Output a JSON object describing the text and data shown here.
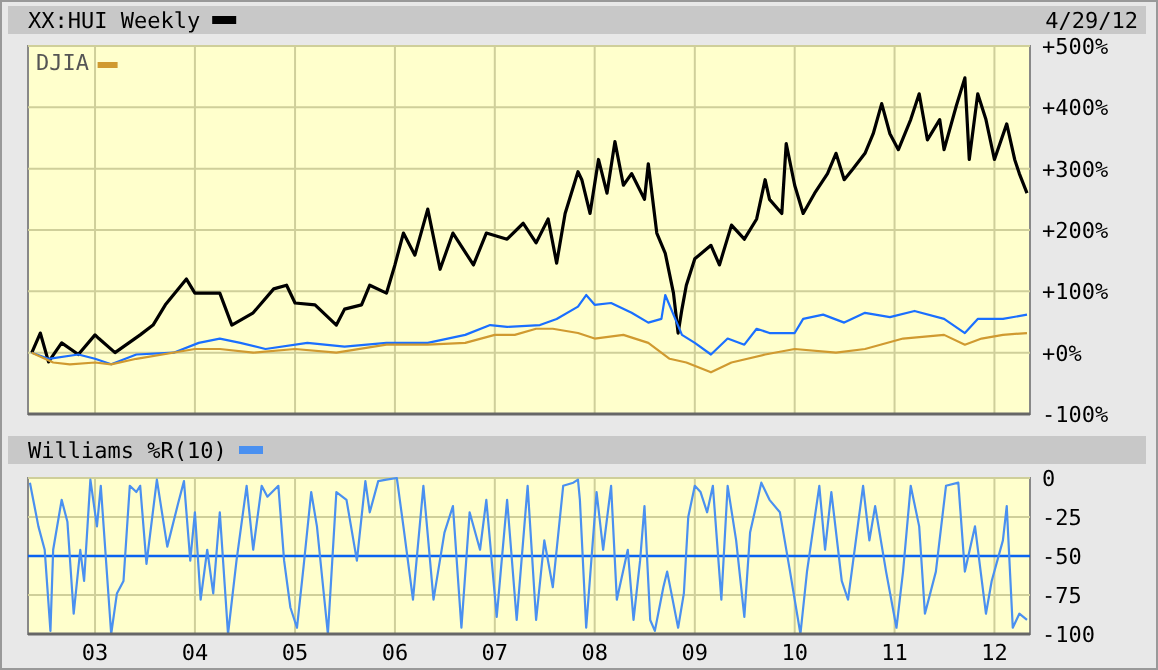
{
  "chart_data": [
    {
      "type": "line",
      "title": "XX:HUI Weekly",
      "annotations": [
        "4/29/12"
      ],
      "legend": "top left",
      "grid": true,
      "tick_labels": "y",
      "xlim": [
        "2002-05-01",
        "2012-05-10"
      ],
      "xticks": [
        "2003-01-01",
        "2004-01-01",
        "2005-01-01",
        "2006-01-01",
        "2007-01-01",
        "2008-01-01",
        "2009-01-01",
        "2010-01-01",
        "2011-01-01",
        "2012-01-01"
      ],
      "ylim": [
        -100,
        500
      ],
      "yticks": [
        {
          "value": -100,
          "label": "-100%"
        },
        {
          "value": 0,
          "label": "+0%"
        },
        {
          "value": 100,
          "label": "+100%"
        },
        {
          "value": 200,
          "label": "+200%"
        },
        {
          "value": 300,
          "label": "+300%"
        },
        {
          "value": 400,
          "label": "+400%"
        },
        {
          "value": 500,
          "label": "+500%"
        }
      ],
      "series": [
        {
          "color": "#000000",
          "x": [
            "2002-05-15",
            "2002-06-15",
            "2002-07-15",
            "2002-09-01",
            "2002-11-01",
            "2003-01-01",
            "2003-01-15",
            "2003-03-15",
            "2003-06-15",
            "2003-08-01",
            "2003-09-15",
            "2003-12-01",
            "2004-01-01",
            "2004-04-01",
            "2004-05-15",
            "2004-08-01",
            "2004-10-15",
            "2004-12-01",
            "2005-01-01",
            "2005-03-15",
            "2005-06-01",
            "2005-07-01",
            "2005-09-01",
            "2005-10-01",
            "2005-12-01",
            "2006-01-01",
            "2006-02-01",
            "2006-03-15",
            "2006-05-01",
            "2006-06-15",
            "2006-08-01",
            "2006-10-15",
            "2006-12-01",
            "2007-02-15",
            "2007-04-15",
            "2007-06-01",
            "2007-07-15",
            "2007-08-15",
            "2007-09-15",
            "2007-11-01",
            "2007-11-15",
            "2007-12-15",
            "2008-01-15",
            "2008-02-15",
            "2008-03-15",
            "2008-04-15",
            "2008-05-15",
            "2008-07-01",
            "2008-07-15",
            "2008-08-15",
            "2008-09-15",
            "2008-10-15",
            "2008-11-01",
            "2008-11-15",
            "2008-12-01",
            "2009-01-01",
            "2009-03-01",
            "2009-04-01",
            "2009-05-15",
            "2009-07-01",
            "2009-08-15",
            "2009-09-15",
            "2009-10-01",
            "2009-11-15",
            "2009-12-01",
            "2010-01-01",
            "2010-02-01",
            "2010-03-15",
            "2010-05-01",
            "2010-06-01",
            "2010-07-01",
            "2010-08-01",
            "2010-09-15",
            "2010-10-15",
            "2010-11-15",
            "2010-12-15",
            "2011-01-15",
            "2011-03-01",
            "2011-04-01",
            "2011-05-01",
            "2011-06-15",
            "2011-07-01",
            "2011-08-15",
            "2011-09-15",
            "2011-10-01",
            "2011-11-01",
            "2011-12-01",
            "2012-01-01",
            "2012-02-15",
            "2012-03-15",
            "2012-04-01",
            "2012-04-29"
          ],
          "values": [
            0,
            32,
            -15,
            16,
            -3,
            29,
            23,
            0,
            29,
            45,
            78,
            120,
            97,
            97,
            45,
            65,
            104,
            110,
            81,
            78,
            45,
            71,
            78,
            110,
            97,
            143,
            195,
            159,
            234,
            136,
            195,
            143,
            195,
            185,
            211,
            179,
            218,
            146,
            227,
            295,
            282,
            227,
            315,
            260,
            344,
            273,
            292,
            250,
            308,
            195,
            162,
            97,
            32,
            71,
            110,
            153,
            175,
            143,
            208,
            185,
            218,
            282,
            250,
            227,
            341,
            273,
            227,
            260,
            292,
            325,
            282,
            299,
            325,
            357,
            406,
            357,
            331,
            380,
            422,
            347,
            380,
            331,
            403,
            448,
            315,
            422,
            380,
            315,
            373,
            315,
            292,
            260
          ]
        },
        {
          "color": "#1a6fff",
          "x": [
            "2002-05-15",
            "2002-07-15",
            "2002-11-01",
            "2003-01-01",
            "2003-03-01",
            "2003-06-01",
            "2003-10-15",
            "2004-01-15",
            "2004-04-01",
            "2004-06-15",
            "2004-09-15",
            "2005-02-15",
            "2005-07-01",
            "2005-12-01",
            "2006-05-01",
            "2006-09-15",
            "2006-12-15",
            "2007-02-15",
            "2007-06-15",
            "2007-08-15",
            "2007-11-01",
            "2007-12-01",
            "2008-01-01",
            "2008-03-01",
            "2008-05-15",
            "2008-07-15",
            "2008-09-01",
            "2008-09-15",
            "2008-10-15",
            "2008-11-15",
            "2009-01-01",
            "2009-03-01",
            "2009-05-01",
            "2009-07-01",
            "2009-08-15",
            "2009-10-01",
            "2010-01-01",
            "2010-02-01",
            "2010-04-15",
            "2010-07-01",
            "2010-09-15",
            "2010-12-15",
            "2011-03-15",
            "2011-07-01",
            "2011-09-15",
            "2011-11-01",
            "2012-02-01",
            "2012-04-29"
          ],
          "values": [
            0,
            -10,
            -3,
            -10,
            -19,
            -3,
            0,
            16,
            23,
            16,
            6,
            16,
            10,
            16,
            16,
            29,
            45,
            42,
            45,
            55,
            75,
            94,
            78,
            81,
            65,
            49,
            55,
            94,
            62,
            29,
            16,
            -3,
            23,
            13,
            39,
            32,
            32,
            55,
            62,
            49,
            65,
            58,
            68,
            55,
            32,
            55,
            55,
            62
          ]
        },
        {
          "name": "DJIA",
          "color": "#d09a30",
          "x": [
            "2002-05-15",
            "2002-08-01",
            "2002-10-01",
            "2003-01-01",
            "2003-03-01",
            "2003-06-01",
            "2004-01-01",
            "2004-04-01",
            "2004-08-01",
            "2005-01-01",
            "2005-06-01",
            "2005-12-01",
            "2006-05-01",
            "2006-09-15",
            "2007-01-01",
            "2007-03-15",
            "2007-06-01",
            "2007-08-01",
            "2007-11-01",
            "2008-01-01",
            "2008-04-15",
            "2008-07-15",
            "2008-10-01",
            "2008-12-01",
            "2009-03-01",
            "2009-05-15",
            "2009-09-15",
            "2010-01-01",
            "2010-06-01",
            "2010-09-15",
            "2011-02-01",
            "2011-07-01",
            "2011-09-15",
            "2011-11-15",
            "2012-02-01",
            "2012-04-29"
          ],
          "values": [
            0,
            -16,
            -19,
            -16,
            -19,
            -10,
            6,
            6,
            0,
            6,
            0,
            13,
            13,
            16,
            29,
            29,
            39,
            39,
            32,
            23,
            29,
            16,
            -10,
            -16,
            -32,
            -16,
            -3,
            6,
            0,
            6,
            23,
            29,
            13,
            23,
            29,
            32
          ]
        }
      ]
    },
    {
      "type": "line",
      "title": "Williams %R(10)",
      "grid": true,
      "xlim": [
        "2002-05-01",
        "2012-05-10"
      ],
      "xticks": [
        {
          "value": "2003-01-01",
          "label": "03"
        },
        {
          "value": "2004-01-01",
          "label": "04"
        },
        {
          "value": "2005-01-01",
          "label": "05"
        },
        {
          "value": "2006-01-01",
          "label": "06"
        },
        {
          "value": "2007-01-01",
          "label": "07"
        },
        {
          "value": "2008-01-01",
          "label": "08"
        },
        {
          "value": "2009-01-01",
          "label": "09"
        },
        {
          "value": "2010-01-01",
          "label": "10"
        },
        {
          "value": "2011-01-01",
          "label": "11"
        },
        {
          "value": "2012-01-01",
          "label": "12"
        }
      ],
      "ylim": [
        -100,
        0
      ],
      "yticks": [
        -100,
        -75,
        -50,
        -25,
        0
      ],
      "ref_lines": [
        {
          "axis": "y",
          "value": -50,
          "color": "#0a64f0"
        }
      ],
      "series": [
        {
          "color": "#4a90f0",
          "x": [
            "2002-05-08",
            "2002-06-08",
            "2002-07-01",
            "2002-07-22",
            "2002-08-01",
            "2002-09-01",
            "2002-09-22",
            "2002-10-15",
            "2002-11-08",
            "2002-11-22",
            "2002-12-15",
            "2003-01-08",
            "2003-01-22",
            "2003-03-01",
            "2003-03-22",
            "2003-04-15",
            "2003-05-08",
            "2003-06-01",
            "2003-06-15",
            "2003-07-08",
            "2003-08-15",
            "2003-09-22",
            "2003-11-01",
            "2003-11-22",
            "2003-12-15",
            "2004-01-01",
            "2004-01-22",
            "2004-02-15",
            "2004-03-08",
            "2004-04-01",
            "2004-05-01",
            "2004-06-01",
            "2004-07-08",
            "2004-08-01",
            "2004-09-01",
            "2004-09-22",
            "2004-11-01",
            "2004-11-22",
            "2004-12-15",
            "2005-01-08",
            "2005-02-01",
            "2005-03-01",
            "2005-03-22",
            "2005-05-01",
            "2005-06-01",
            "2005-07-08",
            "2005-08-15",
            "2005-09-15",
            "2005-10-01",
            "2005-11-01",
            "2005-12-01",
            "2006-01-08",
            "2006-02-01",
            "2006-03-08",
            "2006-04-15",
            "2006-05-22",
            "2006-07-01",
            "2006-08-01",
            "2006-09-01",
            "2006-10-01",
            "2006-11-08",
            "2006-12-01",
            "2007-01-08",
            "2007-02-15",
            "2007-03-22",
            "2007-05-01",
            "2007-06-01",
            "2007-07-01",
            "2007-08-01",
            "2007-09-08",
            "2007-10-15",
            "2007-11-01",
            "2007-11-08",
            "2007-12-01",
            "2008-01-08",
            "2008-02-01",
            "2008-03-01",
            "2008-03-22",
            "2008-05-01",
            "2008-05-22",
            "2008-06-15",
            "2008-07-01",
            "2008-07-22",
            "2008-08-08",
            "2008-09-08",
            "2008-09-22",
            "2008-11-01",
            "2008-11-22",
            "2008-12-08",
            "2009-01-01",
            "2009-01-22",
            "2009-02-15",
            "2009-03-08",
            "2009-04-08",
            "2009-05-01",
            "2009-06-01",
            "2009-07-01",
            "2009-07-22",
            "2009-09-01",
            "2009-10-01",
            "2009-11-08",
            "2009-12-15",
            "2010-01-22",
            "2010-02-15",
            "2010-04-01",
            "2010-04-22",
            "2010-05-15",
            "2010-06-22",
            "2010-07-15",
            "2010-09-08",
            "2010-10-01",
            "2010-10-22",
            "2010-12-01",
            "2011-01-08",
            "2011-02-01",
            "2011-03-01",
            "2011-04-01",
            "2011-04-22",
            "2011-06-01",
            "2011-07-08",
            "2011-08-22",
            "2011-09-15",
            "2011-10-22",
            "2011-12-01",
            "2011-12-22",
            "2012-02-01",
            "2012-02-15",
            "2012-03-08",
            "2012-04-01",
            "2012-04-29"
          ],
          "values": [
            -3,
            -31,
            -46,
            -98,
            -46,
            -14,
            -28,
            -87,
            -46,
            -66,
            -1,
            -31,
            -5,
            -100,
            -74,
            -66,
            -5,
            -9,
            -5,
            -55,
            -1,
            -44,
            -16,
            -2,
            -53,
            -22,
            -78,
            -46,
            -74,
            -22,
            -100,
            -53,
            -5,
            -46,
            -5,
            -12,
            -5,
            -53,
            -83,
            -96,
            -57,
            -9,
            -31,
            -100,
            -9,
            -14,
            -53,
            -2,
            -22,
            -2,
            -1,
            0,
            -31,
            -78,
            -5,
            -78,
            -35,
            -18,
            -96,
            -22,
            -46,
            -14,
            -89,
            -14,
            -91,
            -5,
            -91,
            -40,
            -70,
            -5,
            -3,
            -1,
            -14,
            -96,
            -9,
            -46,
            -5,
            -78,
            -46,
            -91,
            -53,
            -18,
            -91,
            -98,
            -70,
            -60,
            -96,
            -74,
            -25,
            -5,
            -9,
            -22,
            -5,
            -78,
            -5,
            -40,
            -89,
            -35,
            -3,
            -14,
            -22,
            -60,
            -100,
            -60,
            -5,
            -46,
            -9,
            -66,
            -78,
            -5,
            -40,
            -18,
            -60,
            -96,
            -60,
            -5,
            -31,
            -87,
            -60,
            -5,
            -3,
            -60,
            -31,
            -87,
            -66,
            -40,
            -18,
            -96,
            -87,
            -91
          ]
        }
      ]
    }
  ]
}
